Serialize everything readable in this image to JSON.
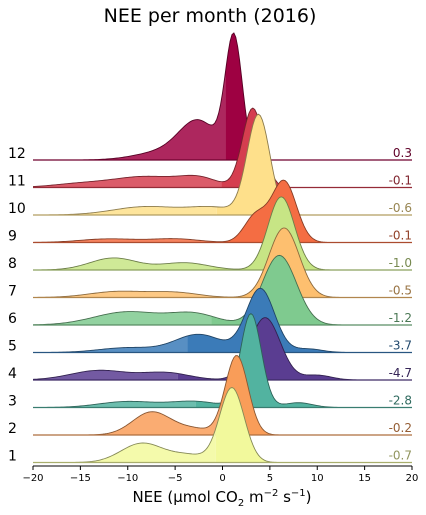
{
  "chart_data": {
    "type": "area",
    "title": "NEE per month (2016)",
    "xlabel": "NEE (µmol CO2 m−2 s−1)",
    "xlabel_parts": {
      "pre": "NEE (µmol CO",
      "sub": "2",
      "mid": " m",
      "sup1": "−2",
      "mid2": " s",
      "sup2": "−1",
      "post": ")"
    },
    "xlim": [
      -20,
      20
    ],
    "xticks": [
      "−20",
      "−15",
      "−10",
      "−5",
      "0",
      "5",
      "10",
      "15",
      "20"
    ],
    "xtick_values": [
      -20,
      -15,
      -10,
      -5,
      0,
      5,
      10,
      15,
      20
    ],
    "grid": false,
    "series": [
      {
        "name": "12",
        "color": "#9e0142",
        "mean": "0.3",
        "mean_value": 0.3,
        "peaks": [
          [
            1.2,
            1.0,
            0.9
          ],
          [
            -2.5,
            0.3,
            2.0
          ],
          [
            -6.0,
            0.07,
            3.0
          ]
        ]
      },
      {
        "name": "11",
        "color": "#d53e4f",
        "mean": "-0.1",
        "mean_value": -0.1,
        "peaks": [
          [
            3.2,
            0.66,
            1.1
          ],
          [
            -2.5,
            0.07,
            2.0
          ],
          [
            -8.0,
            0.09,
            3.5
          ],
          [
            -15.0,
            0.03,
            3.0
          ]
        ]
      },
      {
        "name": "10",
        "color": "#fee08b",
        "mean": "-0.6",
        "mean_value": -0.6,
        "peaks": [
          [
            3.8,
            0.83,
            1.2
          ],
          [
            -8.0,
            0.07,
            3.5
          ],
          [
            -1.0,
            0.06,
            2.5
          ]
        ]
      },
      {
        "name": "9",
        "color": "#f46d43",
        "mean": "-0.1",
        "mean_value": -0.1,
        "peaks": [
          [
            6.5,
            0.51,
            1.3
          ],
          [
            3.5,
            0.22,
            1.2
          ],
          [
            -12.0,
            0.03,
            3.0
          ],
          [
            -5.0,
            0.03,
            2.5
          ]
        ]
      },
      {
        "name": "8",
        "color": "#c7e585",
        "mean": "-1.0",
        "mean_value": -1.0,
        "peaks": [
          [
            6.2,
            0.61,
            1.4
          ],
          [
            -11.5,
            0.1,
            2.5
          ],
          [
            -4.0,
            0.06,
            2.5
          ]
        ]
      },
      {
        "name": "7",
        "color": "#fdbf6f",
        "mean": "-0.5",
        "mean_value": -0.5,
        "peaks": [
          [
            6.5,
            0.58,
            1.6
          ],
          [
            -11.0,
            0.05,
            3.0
          ],
          [
            -5.0,
            0.04,
            2.5
          ]
        ]
      },
      {
        "name": "6",
        "color": "#7fca8f",
        "mean": "-1.2",
        "mean_value": -1.2,
        "peaks": [
          [
            6.0,
            0.58,
            1.8
          ],
          [
            -10.0,
            0.11,
            3.5
          ],
          [
            -3.0,
            0.09,
            2.5
          ]
        ]
      },
      {
        "name": "5",
        "color": "#3b7bb8",
        "mean": "-3.7",
        "mean_value": -3.7,
        "peaks": [
          [
            4.0,
            0.53,
            1.5
          ],
          [
            -2.5,
            0.15,
            2.5
          ],
          [
            -10.0,
            0.04,
            3.0
          ],
          [
            9.0,
            0.03,
            1.5
          ]
        ]
      },
      {
        "name": "4",
        "color": "#5a3d91",
        "mean": "-4.7",
        "mean_value": -4.7,
        "peaks": [
          [
            4.5,
            0.52,
            1.6
          ],
          [
            -13.0,
            0.08,
            3.0
          ],
          [
            -6.0,
            0.06,
            2.5
          ],
          [
            10.0,
            0.04,
            1.5
          ]
        ]
      },
      {
        "name": "3",
        "color": "#52b3a0",
        "mean": "-2.8",
        "mean_value": -2.8,
        "peaks": [
          [
            3.0,
            0.78,
            1.1
          ],
          [
            -10.0,
            0.05,
            3.0
          ],
          [
            -3.0,
            0.05,
            2.5
          ],
          [
            8.0,
            0.04,
            1.5
          ]
        ]
      },
      {
        "name": "2",
        "color": "#f99d59",
        "mean": "-0.2",
        "mean_value": -0.2,
        "peaks": [
          [
            1.5,
            0.66,
            1.2
          ],
          [
            -7.5,
            0.19,
            2.0
          ],
          [
            -3.0,
            0.05,
            2.0
          ]
        ]
      },
      {
        "name": "1",
        "color": "#f2f99c",
        "mean": "-0.7",
        "mean_value": -0.7,
        "peaks": [
          [
            1.0,
            0.62,
            1.3
          ],
          [
            -8.5,
            0.16,
            2.2
          ],
          [
            -3.5,
            0.06,
            2.0
          ]
        ]
      }
    ],
    "legend": "none"
  }
}
